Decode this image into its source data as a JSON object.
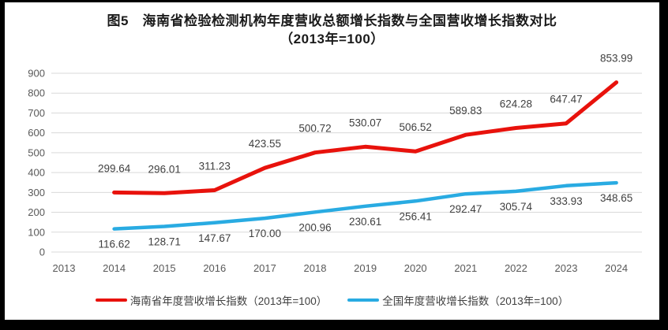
{
  "title": {
    "line1": "图5　海南省检验检测机构年度营收总额增长指数与全国营收增长指数对比",
    "line2": "（2013年=100）"
  },
  "chart_data": {
    "type": "line",
    "categories": [
      "2013",
      "2014",
      "2015",
      "2016",
      "2017",
      "2018",
      "2019",
      "2020",
      "2021",
      "2022",
      "2023",
      "2024"
    ],
    "series": [
      {
        "name": "海南省年度营收增长指数（2013年=100）",
        "color": "#e8120c",
        "stroke_width": 5,
        "label_side": "above",
        "values": [
          null,
          299.64,
          296.01,
          311.23,
          423.55,
          500.72,
          530.07,
          506.52,
          589.83,
          624.28,
          647.47,
          853.99
        ],
        "labels": [
          null,
          "299.64",
          "296.01",
          "311.23",
          "423.55",
          "500.72",
          "530.07",
          "506.52",
          "589.83",
          "624.28",
          "647.47",
          "853.99"
        ]
      },
      {
        "name": "全国年度营收增长指数（2013年=100）",
        "color": "#29abe2",
        "stroke_width": 4.5,
        "label_side": "below",
        "values": [
          null,
          116.62,
          128.71,
          147.67,
          170.0,
          200.96,
          230.61,
          256.41,
          292.47,
          305.74,
          333.93,
          348.65
        ],
        "labels": [
          null,
          "116.62",
          "128.71",
          "147.67",
          "170.00",
          "200.96",
          "230.61",
          "256.41",
          "292.47",
          "305.74",
          "333.93",
          "348.65"
        ]
      }
    ],
    "ylim": [
      0,
      900
    ],
    "ytick_step": 100,
    "yticks": [
      0,
      100,
      200,
      300,
      400,
      500,
      600,
      700,
      800,
      900
    ],
    "grid": true,
    "legend_position": "bottom"
  },
  "colors": {
    "frame": "#000000",
    "background": "#ffffff",
    "gridline": "#d9d9d9",
    "axis_text": "#595959",
    "data_label_text": "#3f3f3f"
  }
}
